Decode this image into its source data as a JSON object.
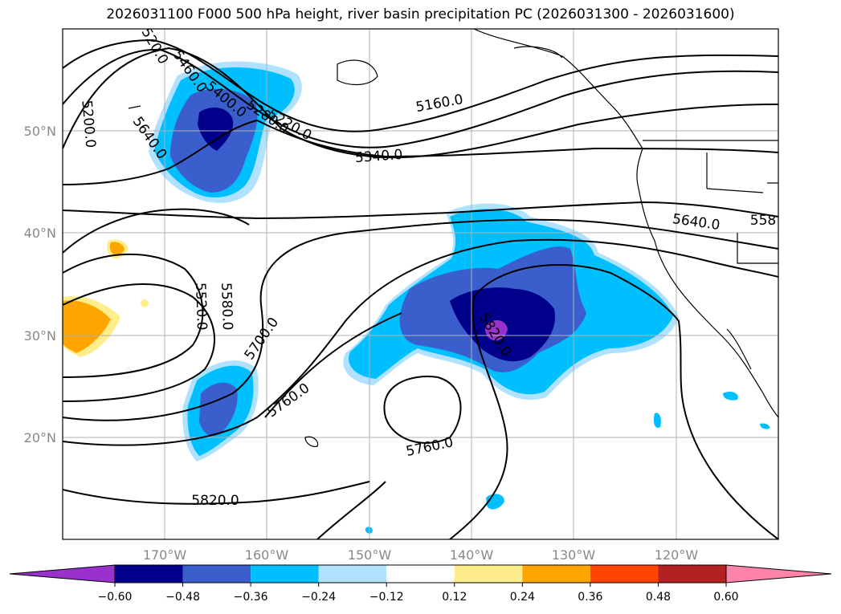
{
  "title": "2026031100 F000 500 hPa height, river basin precipitation PC (2026031300 - 2026031600)",
  "map": {
    "lat_labels": [
      "50°N",
      "40°N",
      "30°N",
      "20°N"
    ],
    "lon_labels": [
      "170°W",
      "160°W",
      "150°W",
      "140°W",
      "130°W",
      "120°W"
    ],
    "extent": {
      "lon_min": -180,
      "lon_max": -110,
      "lat_min": 10,
      "lat_max": 60
    },
    "contour_labels": [
      "5200.0",
      "5640.0",
      "5460.0",
      "5400.0",
      "5280.0",
      "5220.0",
      "5160.0",
      "5340.0",
      "5640.0",
      "558",
      "5520.0",
      "5580.0",
      "5700.0",
      "5760.0",
      "5760.0",
      "5820.0",
      "5820.0",
      "520.0"
    ]
  },
  "colorbar": {
    "ticks": [
      "−0.60",
      "−0.48",
      "−0.36",
      "−0.24",
      "−0.12",
      "0.12",
      "0.24",
      "0.36",
      "0.48",
      "0.60"
    ],
    "colors": [
      "#9932cc",
      "#00008b",
      "#3a5fcd",
      "#00bfff",
      "#b0e2ff",
      "#ffffff",
      "#ffec8b",
      "#ffa500",
      "#ff4500",
      "#b22222",
      "#ff83a8"
    ]
  }
}
